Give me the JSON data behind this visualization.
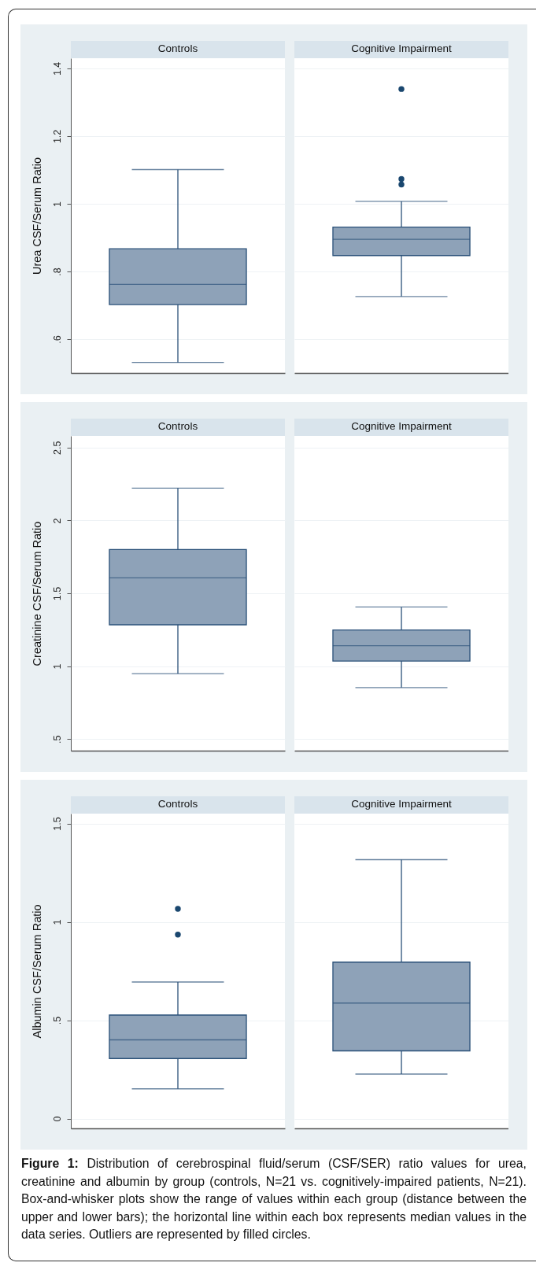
{
  "chart_data": [
    {
      "type": "box",
      "ylabel": "Urea CSF/Serum Ratio",
      "categories": [
        "Controls",
        "Cognitive Impairment"
      ],
      "grid": "y",
      "ylim": [
        0.5,
        1.43
      ],
      "yticks": [
        {
          "value": 0.6,
          "label": ".6"
        },
        {
          "value": 0.8,
          "label": ".8"
        },
        1,
        1.2,
        1.4
      ],
      "series": [
        {
          "color": "#8ea2b8",
          "boxes": [
            {
              "low": 0.531,
              "q1": 0.702,
              "median": 0.762,
              "q3": 0.867,
              "high": 1.101
            },
            {
              "low": 0.726,
              "q1": 0.847,
              "median": 0.895,
              "q3": 0.931,
              "high": 1.007,
              "outliers": [
                1.057,
                1.073,
                1.339
              ]
            }
          ]
        }
      ]
    },
    {
      "type": "box",
      "ylabel": "Creatinine CSF/Serum Ratio",
      "categories": [
        "Controls",
        "Cognitive Impairment"
      ],
      "grid": "y",
      "ylim": [
        0.42,
        2.58
      ],
      "yticks": [
        {
          "value": 0.5,
          "label": ".5"
        },
        1,
        1.5,
        2,
        2.5
      ],
      "series": [
        {
          "color": "#8ea2b8",
          "boxes": [
            {
              "low": 0.949,
              "q1": 1.284,
              "median": 1.606,
              "q3": 1.8,
              "high": 2.222
            },
            {
              "low": 0.853,
              "q1": 1.035,
              "median": 1.14,
              "q3": 1.248,
              "high": 1.406
            }
          ]
        }
      ]
    },
    {
      "type": "box",
      "ylabel": "Albumin CSF/Serum Ratio",
      "categories": [
        "Controls",
        "Cognitive Impairment"
      ],
      "grid": "y",
      "ylim": [
        -0.05,
        1.55
      ],
      "yticks": [
        0,
        {
          "value": 0.5,
          "label": ".5"
        },
        1,
        1.5
      ],
      "series": [
        {
          "color": "#8ea2b8",
          "boxes": [
            {
              "low": 0.151,
              "q1": 0.305,
              "median": 0.4,
              "q3": 0.526,
              "high": 0.694,
              "outliers": [
                0.935,
                1.066
              ]
            },
            {
              "low": 0.226,
              "q1": 0.344,
              "median": 0.587,
              "q3": 0.795,
              "high": 1.316
            }
          ]
        }
      ],
      "annotations": [
        "Figure 1: Distribution of cerebrospinal fluid/serum (CSF/SER) ratio values for urea, creatinine and albumin by group (controls, N=21 vs. cognitively-impaired patients, N=21). Box-and-whisker plots show the range of values within each group (distance between the upper and lower bars); the horizontal line within each box represents median values in the data series. Outliers are represented by filled circles."
      ]
    }
  ]
}
